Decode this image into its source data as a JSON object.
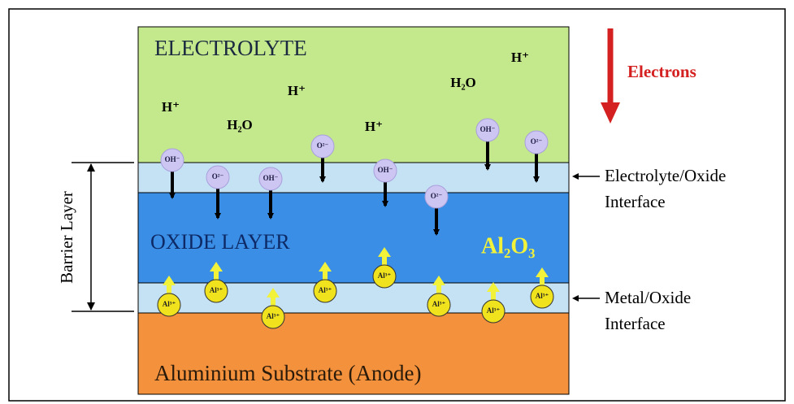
{
  "electrolyte": {
    "title": "ELECTROLYTE",
    "species": [
      "H⁺",
      "H₂O",
      "H⁺",
      "H⁺",
      "H₂O",
      "H⁺"
    ]
  },
  "electrons": "Electrons",
  "anions": [
    "OH⁻",
    "O²⁻",
    "OH⁻",
    "O²⁻",
    "OH⁻",
    "O²⁻",
    "OH⁻",
    "O²⁻"
  ],
  "oxide": {
    "title": "OXIDE LAYER",
    "formula": "Al₂O₃"
  },
  "cations": [
    "Al³⁺",
    "Al³⁺",
    "Al³⁺",
    "Al³⁺",
    "Al³⁺",
    "Al³⁺",
    "Al³⁺",
    "Al³⁺"
  ],
  "barrier_layer": "Barrier Layer",
  "interfaces": [
    {
      "lines": [
        "Electrolyte/Oxide",
        "Interface"
      ]
    },
    {
      "lines": [
        "Metal/Oxide",
        "Interface"
      ]
    }
  ],
  "substrate": "Aluminium Substrate (Anode)"
}
